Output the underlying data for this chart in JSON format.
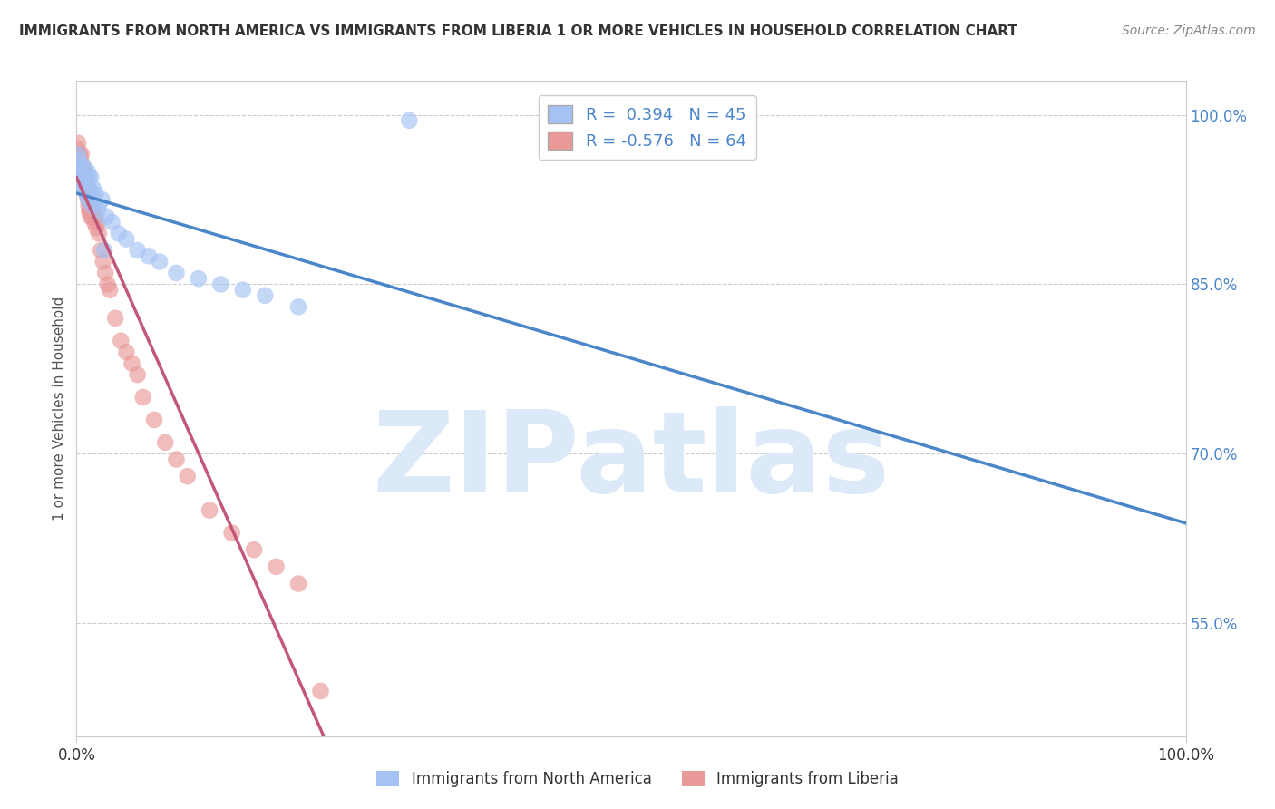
{
  "title": "IMMIGRANTS FROM NORTH AMERICA VS IMMIGRANTS FROM LIBERIA 1 OR MORE VEHICLES IN HOUSEHOLD CORRELATION CHART",
  "source": "Source: ZipAtlas.com",
  "ylabel": "1 or more Vehicles in Household",
  "xlim": [
    0.0,
    100.0
  ],
  "ylim": [
    45.0,
    103.0
  ],
  "yticks": [
    55.0,
    70.0,
    85.0,
    100.0
  ],
  "ytick_labels": [
    "55.0%",
    "70.0%",
    "85.0%",
    "100.0%"
  ],
  "north_america_R": 0.394,
  "north_america_N": 45,
  "liberia_R": -0.576,
  "liberia_N": 64,
  "blue_color": "#a4c2f4",
  "pink_color": "#ea9999",
  "blue_line_color": "#4a86c8",
  "pink_line_color": "#c2577a",
  "watermark_color": "#dce9f8",
  "watermark_text": "ZIPatlas",
  "background_color": "#ffffff",
  "north_america_x": [
    0.1,
    0.2,
    0.3,
    0.4,
    0.5,
    0.6,
    0.7,
    0.8,
    0.9,
    1.0,
    1.1,
    1.2,
    1.3,
    1.5,
    1.7,
    2.0,
    2.3,
    2.7,
    3.2,
    3.8,
    4.5,
    5.5,
    6.5,
    7.5,
    9.0,
    11.0,
    13.0,
    15.0,
    17.0,
    20.0,
    0.15,
    0.25,
    0.35,
    0.55,
    0.65,
    0.75,
    0.85,
    0.95,
    1.05,
    1.15,
    1.4,
    1.6,
    1.9,
    2.5,
    30.0
  ],
  "north_america_y": [
    95.5,
    96.0,
    94.5,
    95.0,
    94.0,
    95.5,
    93.5,
    94.0,
    93.0,
    95.0,
    94.5,
    93.0,
    94.5,
    93.5,
    93.0,
    92.0,
    92.5,
    91.0,
    90.5,
    89.5,
    89.0,
    88.0,
    87.5,
    87.0,
    86.0,
    85.5,
    85.0,
    84.5,
    84.0,
    83.0,
    96.5,
    95.0,
    95.5,
    94.5,
    93.5,
    94.0,
    94.5,
    93.0,
    92.5,
    93.5,
    92.0,
    92.5,
    91.5,
    88.0,
    99.5
  ],
  "liberia_x": [
    0.05,
    0.1,
    0.15,
    0.2,
    0.25,
    0.3,
    0.35,
    0.4,
    0.45,
    0.5,
    0.55,
    0.6,
    0.65,
    0.7,
    0.75,
    0.8,
    0.85,
    0.9,
    0.95,
    1.0,
    1.1,
    1.2,
    1.3,
    1.4,
    1.5,
    1.6,
    1.7,
    1.8,
    1.9,
    2.0,
    2.2,
    2.4,
    2.6,
    2.8,
    3.0,
    3.5,
    4.0,
    4.5,
    5.0,
    5.5,
    6.0,
    7.0,
    8.0,
    9.0,
    10.0,
    12.0,
    14.0,
    16.0,
    18.0,
    20.0,
    0.08,
    0.18,
    0.28,
    0.38,
    0.48,
    0.58,
    0.68,
    0.78,
    0.88,
    0.98,
    1.05,
    1.15,
    1.25,
    22.0
  ],
  "liberia_y": [
    97.0,
    96.5,
    97.5,
    96.0,
    96.5,
    95.5,
    96.0,
    95.0,
    96.5,
    95.0,
    95.5,
    94.5,
    95.0,
    94.0,
    94.5,
    93.5,
    94.0,
    93.0,
    93.5,
    93.0,
    92.0,
    91.5,
    92.0,
    91.0,
    91.5,
    90.5,
    91.0,
    90.0,
    90.5,
    89.5,
    88.0,
    87.0,
    86.0,
    85.0,
    84.5,
    82.0,
    80.0,
    79.0,
    78.0,
    77.0,
    75.0,
    73.0,
    71.0,
    69.5,
    68.0,
    65.0,
    63.0,
    61.5,
    60.0,
    58.5,
    96.0,
    95.0,
    96.5,
    94.5,
    95.5,
    94.0,
    95.0,
    93.5,
    94.5,
    93.0,
    92.5,
    91.5,
    91.0,
    49.0
  ]
}
